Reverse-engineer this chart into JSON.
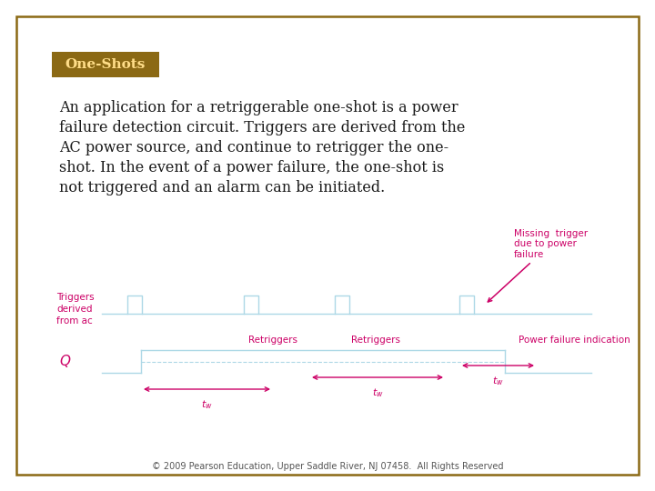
{
  "title": "One-Shots",
  "title_bg": "#8B6914",
  "title_color": "#FFDD88",
  "body_text": "An application for a retriggerable one-shot is a power\nfailure detection circuit. Triggers are derived from the\nAC power source, and continue to retrigger the one-\nshot. In the event of a power failure, the one-shot is\nnot triggered and an alarm can be initiated.",
  "body_color": "#1a1a1a",
  "border_color": "#8B6914",
  "background_color": "#FFFFFF",
  "waveform_color": "#ADD8E6",
  "label_color": "#CC0066",
  "footer": "© 2009 Pearson Education, Upper Saddle River, NJ 07458.  All Rights Reserved",
  "footer_color": "#555555"
}
